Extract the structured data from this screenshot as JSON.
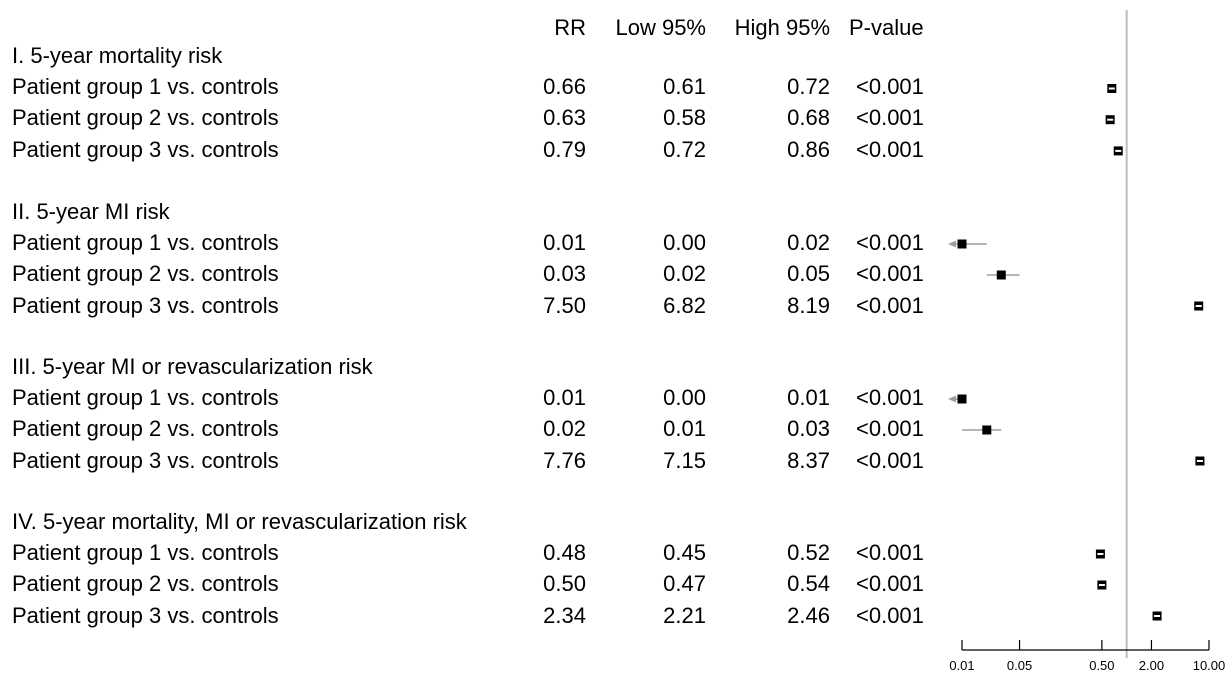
{
  "table": {
    "headers": {
      "rr": "RR",
      "low": "Low 95%",
      "high": "High 95%",
      "p": "P-value"
    },
    "sections": [
      {
        "title": "I. 5-year mortality risk",
        "rows": [
          {
            "label": "Patient group 1 vs. controls",
            "rr": "0.66",
            "low": "0.61",
            "high": "0.72",
            "p": "<0.001"
          },
          {
            "label": "Patient group 2 vs. controls",
            "rr": "0.63",
            "low": "0.58",
            "high": "0.68",
            "p": "<0.001"
          },
          {
            "label": "Patient group 3 vs. controls",
            "rr": "0.79",
            "low": "0.72",
            "high": "0.86",
            "p": "<0.001"
          }
        ]
      },
      {
        "title": "II. 5-year MI risk",
        "rows": [
          {
            "label": "Patient group 1 vs. controls",
            "rr": "0.01",
            "low": "0.00",
            "high": "0.02",
            "p": "<0.001"
          },
          {
            "label": "Patient group 2 vs. controls",
            "rr": "0.03",
            "low": "0.02",
            "high": "0.05",
            "p": "<0.001"
          },
          {
            "label": "Patient group 3 vs. controls",
            "rr": "7.50",
            "low": "6.82",
            "high": "8.19",
            "p": "<0.001"
          }
        ]
      },
      {
        "title": "III. 5-year MI or revascularization risk",
        "rows": [
          {
            "label": "Patient group 1 vs. controls",
            "rr": "0.01",
            "low": "0.00",
            "high": "0.01",
            "p": "<0.001"
          },
          {
            "label": "Patient group 2 vs. controls",
            "rr": "0.02",
            "low": "0.01",
            "high": "0.03",
            "p": "<0.001"
          },
          {
            "label": "Patient group 3 vs. controls",
            "rr": "7.76",
            "low": "7.15",
            "high": "8.37",
            "p": "<0.001"
          }
        ]
      },
      {
        "title": "IV. 5-year mortality, MI or revascularization risk",
        "rows": [
          {
            "label": "Patient group 1 vs. controls",
            "rr": "0.48",
            "low": "0.45",
            "high": "0.52",
            "p": "<0.001"
          },
          {
            "label": "Patient group 2 vs. controls",
            "rr": "0.50",
            "low": "0.47",
            "high": "0.54",
            "p": "<0.001"
          },
          {
            "label": "Patient group 3 vs. controls",
            "rr": "2.34",
            "low": "2.21",
            "high": "2.46",
            "p": "<0.001"
          }
        ]
      }
    ]
  },
  "chart_data": {
    "type": "scatter",
    "title": "",
    "xlabel": "",
    "x_scale": "log",
    "xlim": [
      0.008,
      12
    ],
    "reference_line": 1,
    "x_ticks": [
      0.01,
      0.05,
      0.5,
      2.0,
      10.0
    ],
    "x_tick_labels": [
      "0.01",
      "0.05",
      "0.50",
      "2.00",
      "10.00"
    ],
    "points": [
      {
        "rr": 0.66,
        "low": 0.61,
        "high": 0.72,
        "low_clipped": false
      },
      {
        "rr": 0.63,
        "low": 0.58,
        "high": 0.68,
        "low_clipped": false
      },
      {
        "rr": 0.79,
        "low": 0.72,
        "high": 0.86,
        "low_clipped": false
      },
      {
        "rr": 0.01,
        "low": 0.0,
        "high": 0.02,
        "low_clipped": true
      },
      {
        "rr": 0.03,
        "low": 0.02,
        "high": 0.05,
        "low_clipped": false
      },
      {
        "rr": 7.5,
        "low": 6.82,
        "high": 8.19,
        "low_clipped": false
      },
      {
        "rr": 0.01,
        "low": 0.0,
        "high": 0.01,
        "low_clipped": true
      },
      {
        "rr": 0.02,
        "low": 0.01,
        "high": 0.03,
        "low_clipped": false
      },
      {
        "rr": 7.76,
        "low": 7.15,
        "high": 8.37,
        "low_clipped": false
      },
      {
        "rr": 0.48,
        "low": 0.45,
        "high": 0.52,
        "low_clipped": false
      },
      {
        "rr": 0.5,
        "low": 0.47,
        "high": 0.54,
        "low_clipped": false
      },
      {
        "rr": 2.34,
        "low": 2.21,
        "high": 2.46,
        "low_clipped": false
      }
    ],
    "colors": {
      "marker": "#000000",
      "ci_line": "#9e9e9e",
      "ref_line": "#bdbdbd",
      "axis": "#000000"
    }
  }
}
